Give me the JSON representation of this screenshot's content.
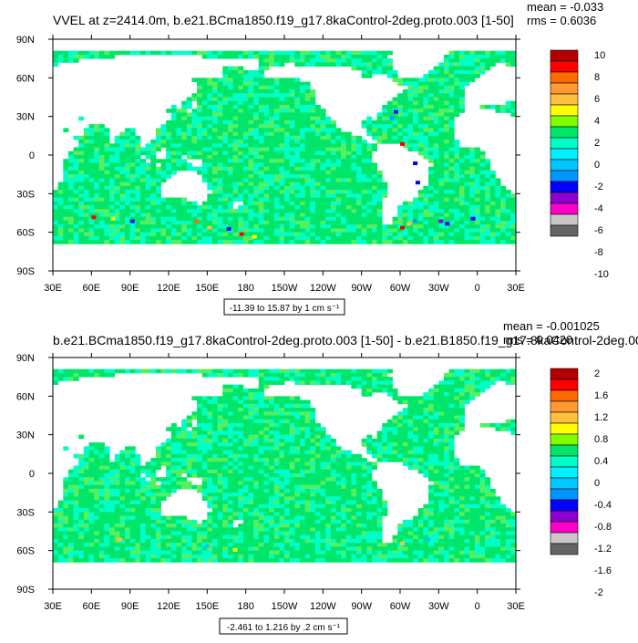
{
  "chart_data": [
    {
      "type": "heatmap",
      "title": "VVEL at z=2414.0m, b.e21.BCma1850.f19_g17.8kaControl-2deg.proto.003 [1-50]",
      "stats": {
        "mean": "mean = -0.033",
        "rms": "rms = 0.6036"
      },
      "x_ticks": [
        "30E",
        "60E",
        "90E",
        "120E",
        "150E",
        "180",
        "150W",
        "120W",
        "90W",
        "60W",
        "30W",
        "0",
        "30E"
      ],
      "y_ticks": [
        "90N",
        "60N",
        "30N",
        "0",
        "30S",
        "60S",
        "90S"
      ],
      "xlim_lon": [
        30,
        390
      ],
      "ylim_lat": [
        -90,
        90
      ],
      "range_label": "-11.39 to 15.87 by 1 cm s⁻¹",
      "colorbar_labels": [
        "10",
        "8",
        "6",
        "4",
        "2",
        "0",
        "-2",
        "-4",
        "-6",
        "-8",
        "-10"
      ],
      "colors": [
        "#b40000",
        "#ff0000",
        "#ff6a00",
        "#ff9a33",
        "#ffc040",
        "#ffff00",
        "#7fff00",
        "#00e66b",
        "#00ffc8",
        "#00f0ff",
        "#00c8ff",
        "#0096ff",
        "#0000ff",
        "#8c00d2",
        "#ff00c8",
        "#c8c8c8",
        "#646464"
      ],
      "land_color": "#ffffff"
    },
    {
      "type": "heatmap",
      "title": "b.e21.BCma1850.f19_g17.8kaControl-2deg.proto.003 [1-50] - b.e21.B1850.f19_g17.8kaControl-2deg.00",
      "stats": {
        "mean": "mean = -0.001025",
        "rms": "rms = 0.0420"
      },
      "x_ticks": [
        "30E",
        "60E",
        "90E",
        "120E",
        "150E",
        "180",
        "150W",
        "120W",
        "90W",
        "60W",
        "30W",
        "0",
        "30E"
      ],
      "y_ticks": [
        "90N",
        "60N",
        "30N",
        "0",
        "30S",
        "60S",
        "90S"
      ],
      "xlim_lon": [
        30,
        390
      ],
      "ylim_lat": [
        -90,
        90
      ],
      "range_label": "-2.461 to 1.216 by .2 cm s⁻¹",
      "colorbar_labels": [
        "2",
        "1.6",
        "1.2",
        "0.8",
        "0.4",
        "0",
        "-0.4",
        "-0.8",
        "-1.2",
        "-1.6",
        "-2"
      ],
      "colors": [
        "#b40000",
        "#ff0000",
        "#ff6a00",
        "#ff9a33",
        "#ffc040",
        "#ffff00",
        "#7fff00",
        "#00e66b",
        "#00ffc8",
        "#00f0ff",
        "#00c8ff",
        "#0096ff",
        "#0000ff",
        "#8c00d2",
        "#ff00c8",
        "#c8c8c8",
        "#646464"
      ],
      "land_color": "#ffffff"
    }
  ]
}
